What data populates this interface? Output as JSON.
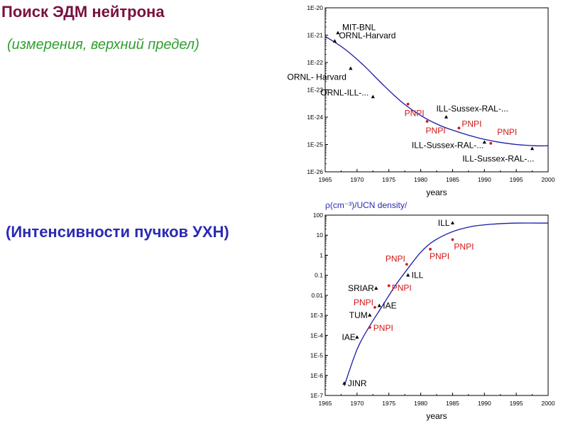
{
  "heading": {
    "title": "Поиск ЭДМ нейтрона",
    "subtitle_edm": "(измерения,  верхний  предел)",
    "subtitle_ucn": "(Интенсивности пучков УХН)"
  },
  "colors": {
    "black": "#000000",
    "red": "#d01818",
    "curve": "#1a1aa8",
    "ucn_label": "#2a2ab4"
  },
  "chart_data": [
    {
      "type": "scatter",
      "title": "",
      "xlabel": "years",
      "ylabel": "",
      "xlim": [
        1965,
        2000
      ],
      "ylim_exp": [
        -26,
        -20
      ],
      "log_y": true,
      "x_ticks": [
        "1965",
        "1970",
        "1975",
        "1980",
        "1985",
        "1990",
        "1995",
        "2000"
      ],
      "y_ticks": [
        "1E-26",
        "1E-25",
        "1E-24",
        "1E-23",
        "1E-22",
        "1E-21",
        "1E-20"
      ],
      "points": [
        {
          "x": 1967,
          "y": 1.2e-21,
          "label": "MIT-BNL",
          "color": "black"
        },
        {
          "x": 1966.5,
          "y": 6e-22,
          "label": "ORNL-Harvard",
          "color": "black"
        },
        {
          "x": 1969,
          "y": 6e-23,
          "label": "ORNL- Harvard",
          "color": "black"
        },
        {
          "x": 1972.5,
          "y": 5.5e-24,
          "label": "ORNL-ILL-...",
          "color": "black"
        },
        {
          "x": 1978,
          "y": 3e-24,
          "label": "PNPI",
          "color": "red"
        },
        {
          "x": 1981,
          "y": 7e-25,
          "label": "PNPI",
          "color": "red"
        },
        {
          "x": 1984,
          "y": 1e-24,
          "label": "ILL-Sussex-RAL-...",
          "color": "black"
        },
        {
          "x": 1986,
          "y": 4e-25,
          "label": "PNPI",
          "color": "red"
        },
        {
          "x": 1990,
          "y": 1.2e-25,
          "label": "ILL-Sussex-RAL-...",
          "color": "black"
        },
        {
          "x": 1991,
          "y": 1.1e-25,
          "label": "PNPI",
          "color": "red"
        },
        {
          "x": 1997.5,
          "y": 7e-26,
          "label": "ILL-Sussex-RAL-...",
          "color": "black"
        }
      ],
      "trend": {
        "x": [
          1965,
          1968,
          1971,
          1974,
          1977,
          1980,
          1983,
          1986,
          1989,
          1992,
          1995,
          1998,
          2000
        ],
        "y": [
          9e-22,
          3.2e-22,
          8e-23,
          1.6e-23,
          3.6e-24,
          1.15e-24,
          5e-25,
          2.8e-25,
          1.75e-25,
          1.25e-25,
          1e-25,
          9e-26,
          9e-26
        ]
      }
    },
    {
      "type": "scatter",
      "title": "",
      "xlabel": "years",
      "ylabel": "ρ(cm⁻³)/UCN density/",
      "xlim": [
        1965,
        2000
      ],
      "ylim_exp": [
        -7,
        2
      ],
      "log_y": true,
      "x_ticks": [
        "1965",
        "1970",
        "1975",
        "1980",
        "1985",
        "1990",
        "1995",
        "2000"
      ],
      "y_ticks": [
        "1E-7",
        "1E-6",
        "1E-5",
        "1E-4",
        "1E-3",
        "0.01",
        "0.1",
        "1",
        "10",
        "100"
      ],
      "points": [
        {
          "x": 1968,
          "y": 4e-07,
          "label": "JINR",
          "color": "black"
        },
        {
          "x": 1970,
          "y": 8e-05,
          "label": "IAE",
          "color": "black"
        },
        {
          "x": 1972,
          "y": 0.00025,
          "label": "PNPI",
          "color": "red"
        },
        {
          "x": 1972,
          "y": 0.001,
          "label": "TUM",
          "color": "black"
        },
        {
          "x": 1972.8,
          "y": 0.0025,
          "label": "PNPI",
          "color": "red"
        },
        {
          "x": 1973.5,
          "y": 0.003,
          "label": "IAE",
          "color": "black"
        },
        {
          "x": 1973,
          "y": 0.022,
          "label": "SRIAR",
          "color": "black"
        },
        {
          "x": 1975,
          "y": 0.03,
          "label": "PNPI",
          "color": "red"
        },
        {
          "x": 1977.8,
          "y": 0.35,
          "label": "PNPI",
          "color": "red"
        },
        {
          "x": 1978,
          "y": 0.1,
          "label": "ILL",
          "color": "black"
        },
        {
          "x": 1981.5,
          "y": 2,
          "label": "PNPI",
          "color": "red"
        },
        {
          "x": 1985,
          "y": 6,
          "label": "PNPI",
          "color": "red"
        },
        {
          "x": 1985,
          "y": 40,
          "label": "ILL",
          "color": "black"
        }
      ],
      "trend": {
        "x": [
          1968,
          1970,
          1972,
          1974,
          1976,
          1978,
          1980,
          1982,
          1985,
          1988,
          1991,
          1995,
          2000
        ],
        "y": [
          3e-07,
          2e-05,
          0.0003,
          0.003,
          0.03,
          0.22,
          1.4,
          5,
          15,
          27,
          35,
          40,
          40
        ]
      }
    }
  ]
}
